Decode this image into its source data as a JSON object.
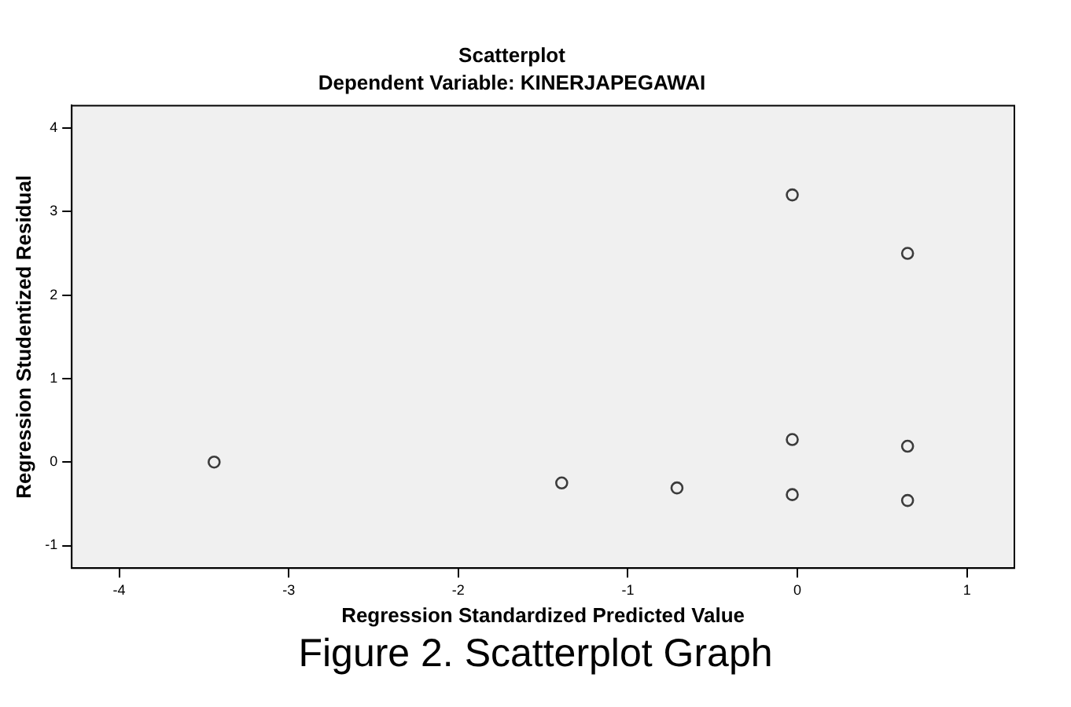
{
  "chart_data": {
    "type": "scatter",
    "title": "Scatterplot",
    "subtitle": "Dependent Variable: KINERJAPEGAWAI",
    "xlabel": "Regression Standardized Predicted Value",
    "ylabel": "Regression Studentized Residual",
    "annotations": [
      "Figure 2. Scatterplot Graph"
    ],
    "x": [
      -3.44,
      -1.39,
      -0.71,
      -0.03,
      -0.03,
      -0.03,
      0.65,
      0.65,
      0.65
    ],
    "values": [
      0,
      -0.25,
      -0.31,
      -0.39,
      0.27,
      3.2,
      2.5,
      0.19,
      -0.46
    ],
    "color": "#3c3c3c",
    "marker": "circle",
    "grid": false,
    "legend": false,
    "xlim": [
      -4.28,
      1.28
    ],
    "xticks": [
      -4,
      -3,
      -2,
      -1,
      0,
      1
    ],
    "ylim": [
      -1.27,
      4.27
    ],
    "yticks": [
      -1,
      0,
      1,
      2,
      3,
      4
    ]
  }
}
